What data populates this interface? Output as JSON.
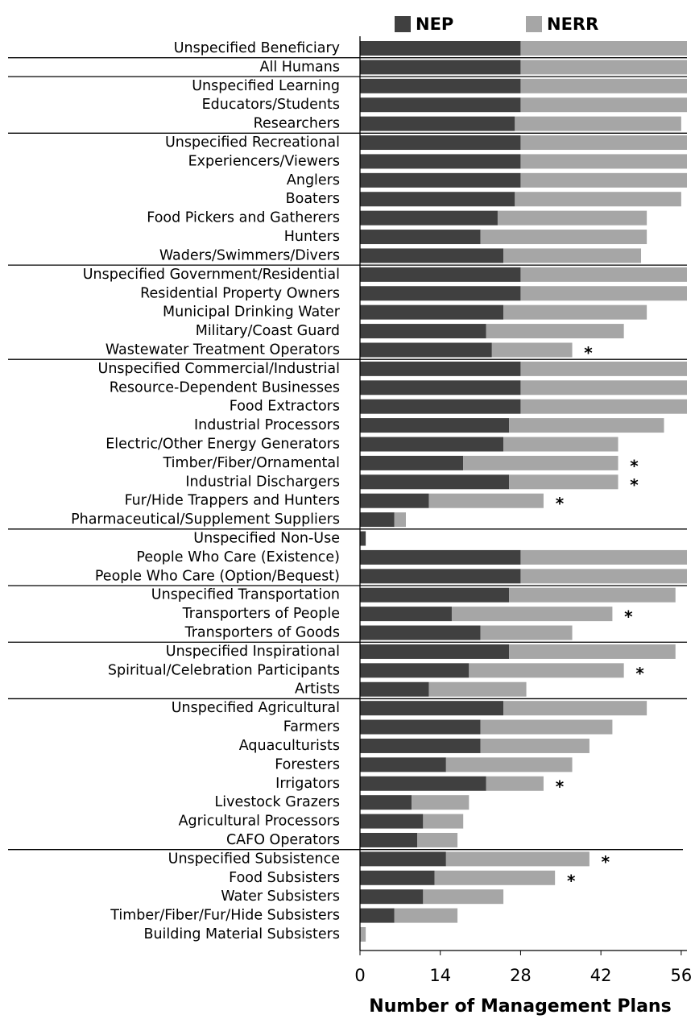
{
  "chart_data": {
    "type": "stacked_barh",
    "categories": [
      "Unspecified Beneficiary",
      "All Humans",
      "Unspecified Learning",
      "Educators/Students",
      "Researchers",
      "Unspecified Recreational",
      "Experiencers/Viewers",
      "Anglers",
      "Boaters",
      "Food Pickers and Gatherers",
      "Hunters",
      "Waders/Swimmers/Divers",
      "Unspecified Government/Residential",
      "Residential Property Owners",
      "Municipal Drinking Water",
      "Military/Coast Guard",
      "Wastewater Treatment Operators",
      "Unspecified Commercial/Industrial",
      "Resource-Dependent Businesses",
      "Food Extractors",
      "Industrial Processors",
      "Electric/Other Energy Generators",
      "Timber/Fiber/Ornamental",
      "Industrial Dischargers",
      "Fur/Hide Trappers and Hunters",
      "Pharmaceutical/Supplement Suppliers",
      "Unspecified Non-Use",
      "People Who Care (Existence)",
      "People Who Care (Option/Bequest)",
      "Unspecified Transportation",
      "Transporters of People",
      "Transporters of Goods",
      "Unspecified Inspirational",
      "Spiritual/Celebration Participants",
      "Artists",
      "Unspecified Agricultural",
      "Farmers",
      "Aquaculturists",
      "Foresters",
      "Irrigators",
      "Livestock Grazers",
      "Agricultural Processors",
      "CAFO Operators",
      "Unspecified Subsistence",
      "Food Subsisters",
      "Water Subsisters",
      "Timber/Fiber/Fur/Hide Subsisters",
      "Building Material Subsisters"
    ],
    "series": [
      {
        "name": "NEP",
        "color": "#404040",
        "values": [
          28,
          28,
          28,
          28,
          27,
          28,
          28,
          28,
          27,
          24,
          21,
          25,
          28,
          28,
          25,
          22,
          23,
          28,
          28,
          28,
          26,
          25,
          18,
          26,
          12,
          6,
          1,
          28,
          28,
          26,
          16,
          21,
          26,
          19,
          12,
          25,
          21,
          21,
          15,
          22,
          9,
          11,
          10,
          15,
          13,
          11,
          6,
          0
        ]
      },
      {
        "name": "NERR",
        "color": "#a6a6a6",
        "values": [
          29,
          29,
          29,
          29,
          29,
          29,
          29,
          29,
          29,
          26,
          29,
          24,
          29,
          29,
          25,
          24,
          14,
          29,
          29,
          29,
          27,
          20,
          27,
          19,
          20,
          2,
          0,
          29,
          29,
          29,
          28,
          16,
          29,
          27,
          17,
          25,
          23,
          19,
          22,
          10,
          10,
          7,
          7,
          25,
          21,
          14,
          11,
          1
        ]
      }
    ],
    "annotations": [
      null,
      null,
      null,
      null,
      null,
      null,
      null,
      null,
      null,
      null,
      null,
      null,
      null,
      null,
      null,
      null,
      "*",
      null,
      null,
      null,
      null,
      null,
      "*",
      "*",
      "*",
      null,
      null,
      null,
      null,
      null,
      "*",
      null,
      null,
      "*",
      null,
      null,
      null,
      null,
      null,
      "*",
      null,
      null,
      null,
      "*",
      "*",
      null,
      null,
      null
    ],
    "xlabel": "Number of Management Plans",
    "xlim": [
      0,
      57
    ],
    "xticks": [
      0,
      14,
      28,
      42,
      56
    ],
    "legend": "top"
  }
}
